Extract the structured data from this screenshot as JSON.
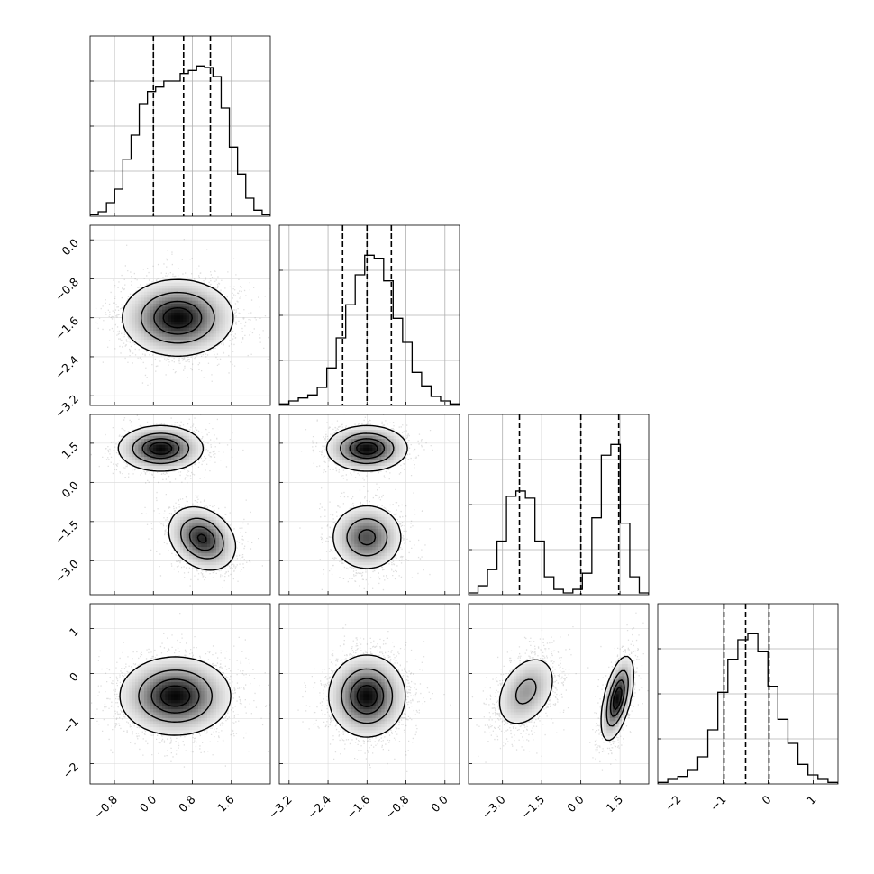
{
  "chart_data": {
    "type": "corner",
    "grid": true,
    "parameters": [
      {
        "range": [
          -1.3,
          2.4
        ],
        "ticks": [
          -0.8,
          0.0,
          0.8,
          1.6
        ],
        "tick_labels": [
          "−0.8",
          "0.0",
          "0.8",
          "1.6"
        ]
      },
      {
        "range": [
          -3.4,
          0.3
        ],
        "ticks": [
          -3.2,
          -2.4,
          -1.6,
          -0.8,
          0.0
        ],
        "tick_labels": [
          "−3.2",
          "−2.4",
          "−1.6",
          "−0.8",
          "0.0"
        ]
      },
      {
        "range": [
          -4.3,
          2.6
        ],
        "ticks": [
          -3.0,
          -1.5,
          0.0,
          1.5
        ],
        "tick_labels": [
          "−3.0",
          "−1.5",
          "0.0",
          "1.5"
        ]
      },
      {
        "range": [
          -2.45,
          1.55
        ],
        "ticks": [
          -2,
          -1,
          0,
          1
        ],
        "tick_labels": [
          "−2",
          "−1",
          "0",
          "1"
        ]
      }
    ],
    "histograms": [
      {
        "param": 0,
        "counts": [
          0.01,
          0.03,
          0.09,
          0.18,
          0.38,
          0.54,
          0.75,
          0.83,
          0.86,
          0.9,
          0.9,
          0.95,
          0.97,
          1.0,
          0.99,
          0.93,
          0.72,
          0.46,
          0.28,
          0.12,
          0.04,
          0.01
        ],
        "quantiles": [
          0.0,
          0.62,
          1.17
        ]
      },
      {
        "param": 1,
        "counts": [
          0.01,
          0.03,
          0.05,
          0.07,
          0.12,
          0.25,
          0.45,
          0.67,
          0.87,
          1.0,
          0.98,
          0.83,
          0.58,
          0.42,
          0.22,
          0.13,
          0.06,
          0.03,
          0.01
        ],
        "quantiles": [
          -2.1,
          -1.6,
          -1.1
        ]
      },
      {
        "param": 2,
        "counts": [
          0.01,
          0.05,
          0.14,
          0.3,
          0.55,
          0.58,
          0.54,
          0.3,
          0.1,
          0.03,
          0.01,
          0.03,
          0.12,
          0.43,
          0.78,
          0.84,
          0.4,
          0.1,
          0.01
        ],
        "quantiles": [
          -2.35,
          0.0,
          1.45
        ]
      },
      {
        "param": 3,
        "counts": [
          0.01,
          0.03,
          0.05,
          0.09,
          0.18,
          0.36,
          0.61,
          0.83,
          0.96,
          1.0,
          0.88,
          0.65,
          0.43,
          0.27,
          0.13,
          0.06,
          0.03,
          0.01
        ],
        "quantiles": [
          -0.98,
          -0.5,
          0.02
        ]
      }
    ],
    "pairs": [
      {
        "x": 0,
        "y": 1,
        "components": [
          {
            "w": 1.0,
            "mx": 0.5,
            "my": -1.6,
            "sx": 0.55,
            "sy": 0.38,
            "rho": 0.0
          }
        ]
      },
      {
        "x": 0,
        "y": 2,
        "components": [
          {
            "w": 0.5,
            "mx": 0.15,
            "my": 1.3,
            "sx": 0.42,
            "sy": 0.42,
            "rho": 0.0
          },
          {
            "w": 0.5,
            "mx": 1.0,
            "my": -2.15,
            "sx": 0.34,
            "sy": 0.6,
            "rho": -0.25
          }
        ]
      },
      {
        "x": 1,
        "y": 2,
        "components": [
          {
            "w": 0.5,
            "mx": -1.6,
            "my": 1.3,
            "sx": 0.4,
            "sy": 0.42,
            "rho": 0.0
          },
          {
            "w": 0.5,
            "mx": -1.6,
            "my": -2.1,
            "sx": 0.36,
            "sy": 0.62,
            "rho": 0.0
          }
        ]
      },
      {
        "x": 0,
        "y": 3,
        "components": [
          {
            "w": 1.0,
            "mx": 0.45,
            "my": -0.5,
            "sx": 0.55,
            "sy": 0.42,
            "rho": 0.0
          }
        ]
      },
      {
        "x": 1,
        "y": 3,
        "components": [
          {
            "w": 1.0,
            "mx": -1.6,
            "my": -0.5,
            "sx": 0.38,
            "sy": 0.44,
            "rho": 0.0
          }
        ]
      },
      {
        "x": 2,
        "y": 3,
        "components": [
          {
            "w": 0.5,
            "mx": -2.1,
            "my": -0.4,
            "sx": 0.6,
            "sy": 0.42,
            "rho": 0.35
          },
          {
            "w": 0.5,
            "mx": 1.4,
            "my": -0.55,
            "sx": 0.3,
            "sy": 0.45,
            "rho": 0.55
          }
        ]
      }
    ],
    "contour_levels": [
      0.118,
      0.393,
      0.675,
      0.865
    ]
  }
}
